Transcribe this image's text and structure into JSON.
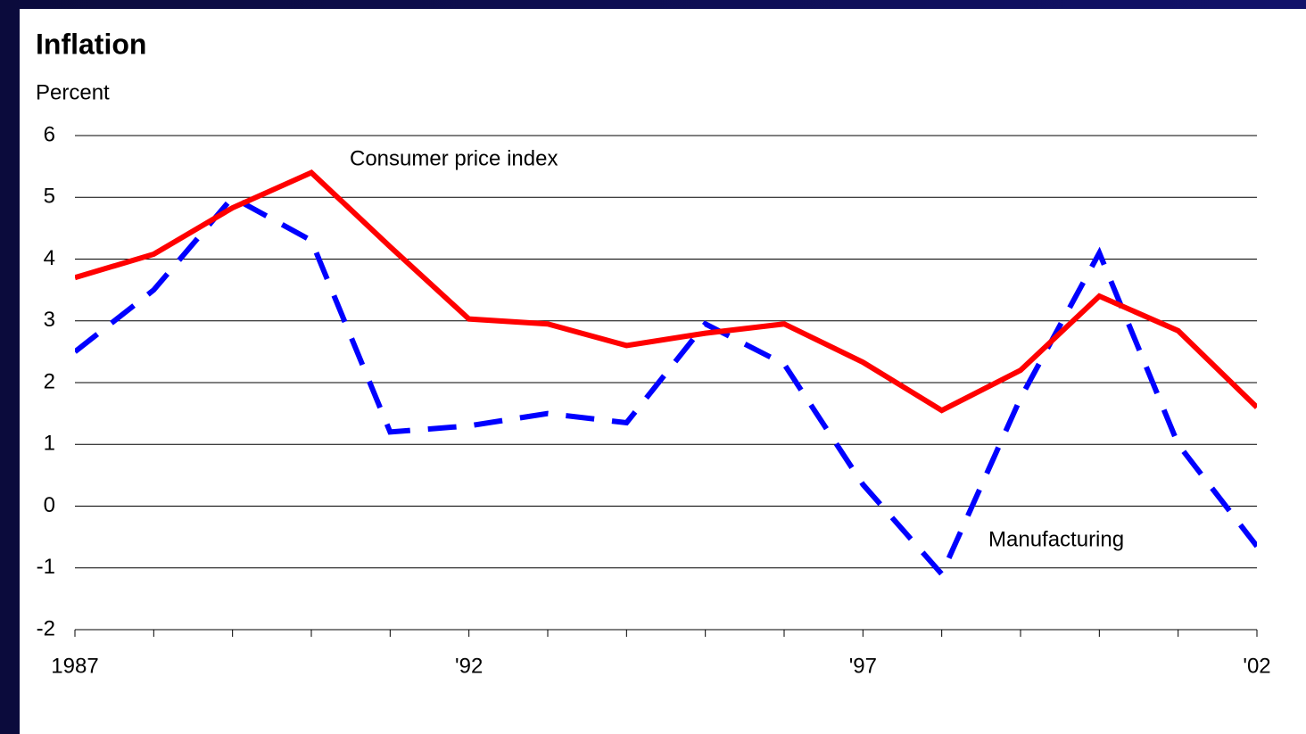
{
  "chart_data": {
    "type": "line",
    "title": "Inflation",
    "y_label": "Percent",
    "x": [
      1987,
      1988,
      1989,
      1990,
      1991,
      1992,
      1993,
      1994,
      1995,
      1996,
      1997,
      1998,
      1999,
      2000,
      2001,
      2002
    ],
    "series": [
      {
        "name": "Consumer price index",
        "color": "#ff0000",
        "dashed": false,
        "values": [
          3.7,
          4.08,
          4.83,
          5.4,
          4.2,
          3.03,
          2.95,
          2.6,
          2.8,
          2.95,
          2.33,
          1.55,
          2.2,
          3.4,
          2.84,
          1.6
        ]
      },
      {
        "name": "Manufacturing",
        "color": "#0000ff",
        "dashed": true,
        "values": [
          2.5,
          3.5,
          5.0,
          4.3,
          1.2,
          1.3,
          1.5,
          1.35,
          2.95,
          2.3,
          0.35,
          -1.1,
          1.75,
          4.1,
          1.0,
          -0.65
        ]
      }
    ],
    "xlim": [
      1987,
      2002
    ],
    "xticks": [
      1987,
      {
        "value": 1992,
        "label": "'92"
      },
      {
        "value": 1997,
        "label": "'97"
      },
      {
        "value": 2002,
        "label": "'02"
      }
    ],
    "ylim": [
      -2,
      6
    ],
    "yticks": [
      -2,
      -1,
      0,
      1,
      2,
      3,
      4,
      5,
      6
    ],
    "grid": true
  }
}
